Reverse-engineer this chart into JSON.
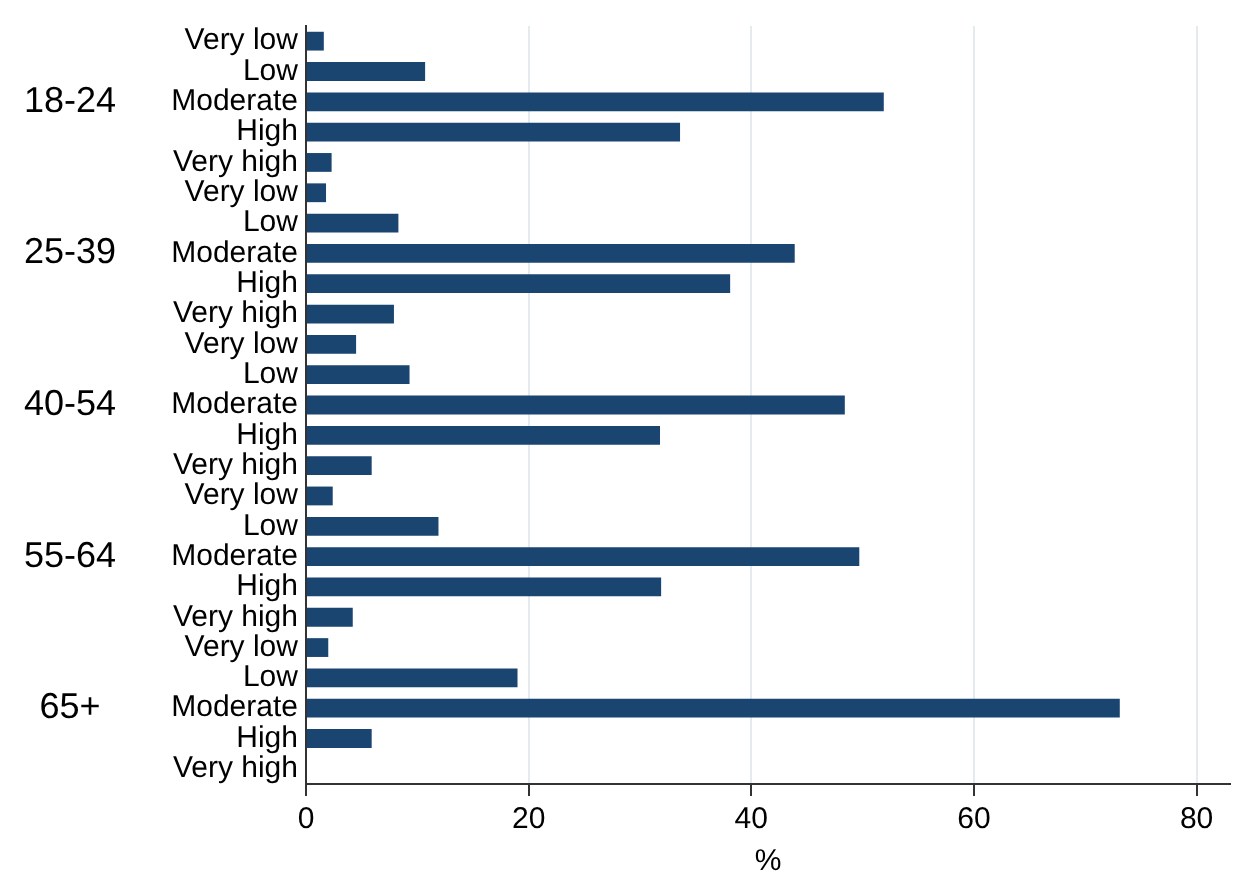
{
  "chart_data": {
    "type": "bar",
    "orientation": "horizontal",
    "xlabel": "%",
    "categories": [
      "Very low",
      "Low",
      "Moderate",
      "High",
      "Very high",
      "Very low",
      "Low",
      "Moderate",
      "High",
      "Very high",
      "Very low",
      "Low",
      "Moderate",
      "High",
      "Very high",
      "Very low",
      "Low",
      "Moderate",
      "High",
      "Very high",
      "Very low",
      "Low",
      "Moderate",
      "High",
      "Very high"
    ],
    "values": [
      1.6,
      10.7,
      51.9,
      33.6,
      2.3,
      1.8,
      8.3,
      43.9,
      38.1,
      7.9,
      4.5,
      9.3,
      48.4,
      31.8,
      5.9,
      2.4,
      11.9,
      49.7,
      31.9,
      4.2,
      2.0,
      19.0,
      73.1,
      5.9,
      0
    ],
    "color": "#1a4570",
    "annotations": [
      "18-24",
      "25-39",
      "40-54",
      "55-64",
      "65+"
    ],
    "xlim": [
      0,
      83
    ],
    "xticks": [
      0,
      20,
      40,
      60,
      80
    ],
    "grid": "x",
    "legend": false
  }
}
